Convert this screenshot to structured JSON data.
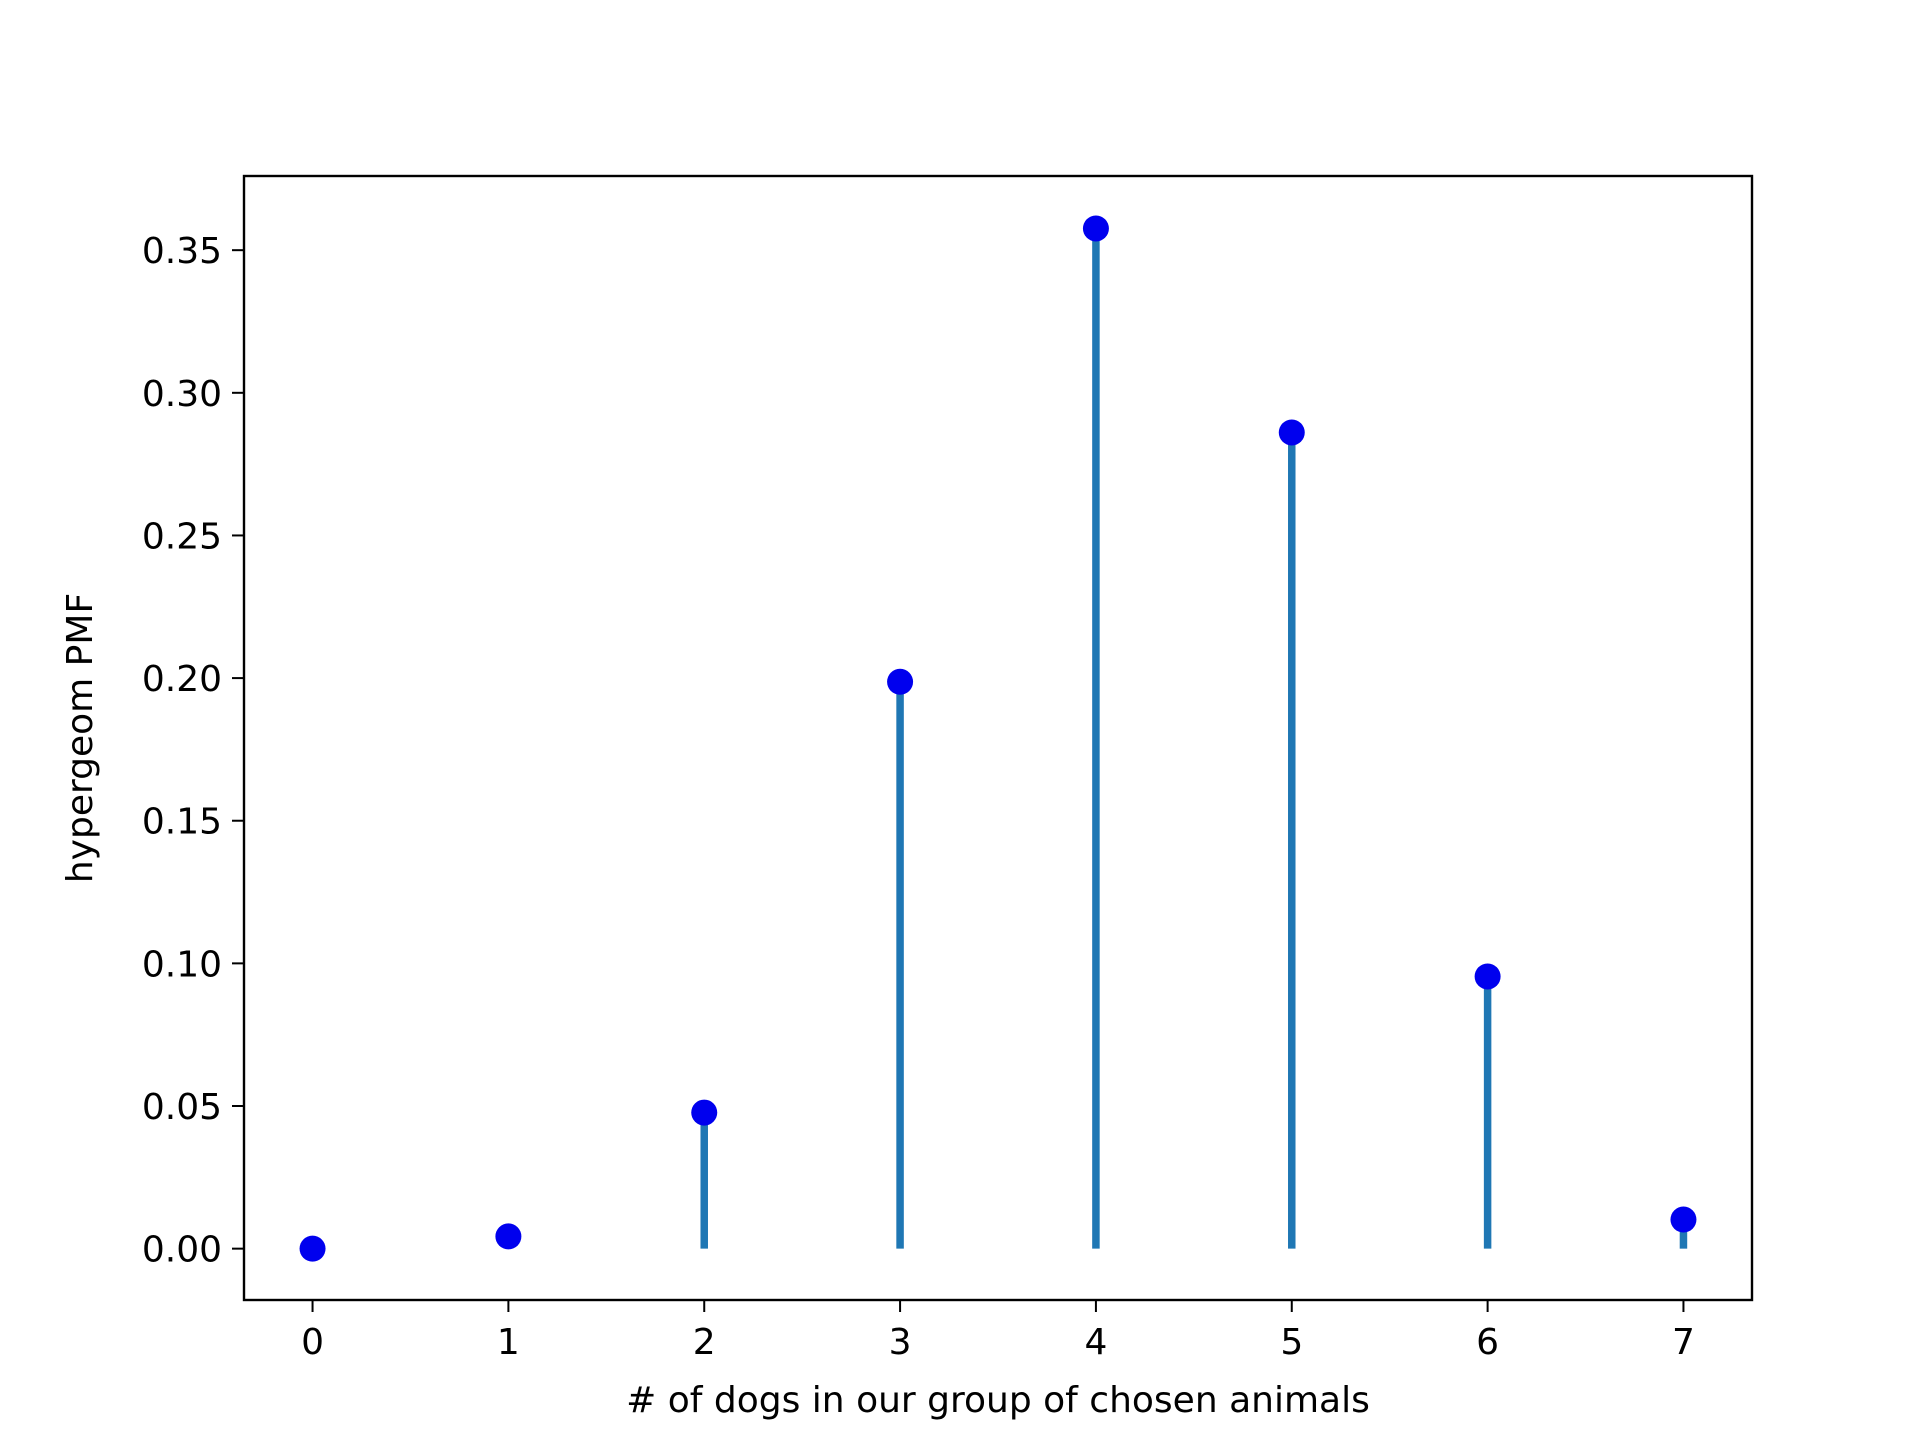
{
  "chart_data": {
    "type": "stem",
    "xlabel": "# of dogs in our group of chosen animals",
    "ylabel": "hypergeom PMF",
    "xlim": [
      -0.35,
      7.35
    ],
    "ylim": [
      -0.018,
      0.376
    ],
    "x_ticks": [
      0,
      1,
      2,
      3,
      4,
      5,
      6,
      7
    ],
    "x_tick_labels": [
      "0",
      "1",
      "2",
      "3",
      "4",
      "5",
      "6",
      "7"
    ],
    "y_ticks": [
      0.0,
      0.05,
      0.1,
      0.15,
      0.2,
      0.25,
      0.3,
      0.35
    ],
    "y_tick_labels": [
      "0.00",
      "0.05",
      "0.10",
      "0.15",
      "0.20",
      "0.25",
      "0.30",
      "0.35"
    ],
    "x": [
      0,
      1,
      2,
      3,
      4,
      5,
      6,
      7
    ],
    "values": [
      0.0,
      0.0043,
      0.0477,
      0.1987,
      0.3576,
      0.2861,
      0.0954,
      0.0102
    ],
    "grid": false,
    "colors": {
      "stem": "#1f77b4",
      "marker": "#0000ee",
      "axes": "#000000"
    }
  }
}
